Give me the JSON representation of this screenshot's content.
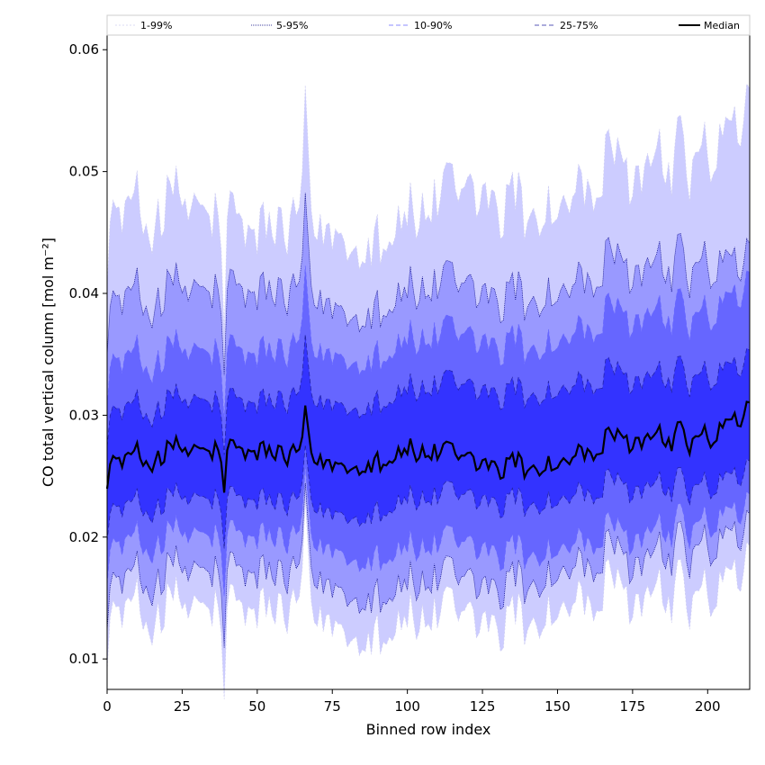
{
  "chart_data": {
    "type": "area",
    "xlabel": "Binned row index",
    "ylabel": "CO total vertical column [mol m⁻²]",
    "xlim": [
      0,
      214
    ],
    "ylim": [
      0.0075,
      0.0612
    ],
    "x_ticks": [
      0,
      25,
      50,
      75,
      100,
      125,
      150,
      175,
      200
    ],
    "y_ticks": [
      0.01,
      0.02,
      0.03,
      0.04,
      0.05,
      0.06
    ],
    "y_tick_labels": [
      "0.01",
      "0.02",
      "0.03",
      "0.04",
      "0.05",
      "0.06"
    ],
    "grid": false,
    "legend_position": "top",
    "bands": [
      {
        "name": "1-99%",
        "fill": "#ccccff",
        "line": "#d0d0f0"
      },
      {
        "name": "5-95%",
        "fill": "#9999ff",
        "line": "#000080"
      },
      {
        "name": "10-90%",
        "fill": "#6666ff",
        "line": "#6666ff"
      },
      {
        "name": "25-75%",
        "fill": "#3333ff",
        "line": "#2020a0"
      }
    ],
    "median_series": {
      "name": "Median",
      "color": "#000000"
    },
    "x_sample": [
      0,
      25,
      50,
      75,
      100,
      125,
      150,
      175,
      200,
      214
    ],
    "median": [
      0.026,
      0.027,
      0.027,
      0.026,
      0.027,
      0.026,
      0.026,
      0.028,
      0.028,
      0.03
    ],
    "p25": [
      0.022,
      0.023,
      0.023,
      0.022,
      0.023,
      0.023,
      0.023,
      0.024,
      0.024,
      0.025
    ],
    "p75": [
      0.03,
      0.031,
      0.031,
      0.031,
      0.032,
      0.032,
      0.032,
      0.033,
      0.033,
      0.034
    ],
    "p10": [
      0.019,
      0.02,
      0.02,
      0.019,
      0.019,
      0.019,
      0.019,
      0.02,
      0.021,
      0.022
    ],
    "p90": [
      0.034,
      0.035,
      0.035,
      0.035,
      0.036,
      0.036,
      0.036,
      0.038,
      0.038,
      0.04
    ],
    "p5": [
      0.016,
      0.017,
      0.017,
      0.016,
      0.016,
      0.016,
      0.017,
      0.018,
      0.019,
      0.02
    ],
    "p95": [
      0.039,
      0.04,
      0.04,
      0.039,
      0.04,
      0.04,
      0.04,
      0.042,
      0.042,
      0.042
    ],
    "p1": [
      0.0135,
      0.014,
      0.014,
      0.013,
      0.013,
      0.013,
      0.014,
      0.015,
      0.015,
      0.017
    ],
    "p99": [
      0.046,
      0.047,
      0.045,
      0.045,
      0.046,
      0.048,
      0.047,
      0.05,
      0.051,
      0.054
    ]
  }
}
